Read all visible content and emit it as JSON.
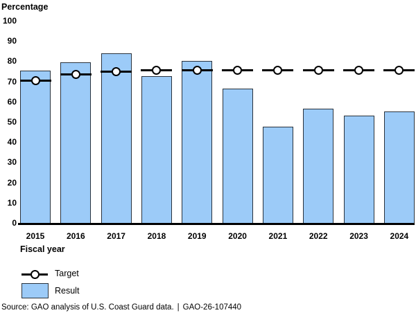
{
  "chart_data": {
    "type": "bar",
    "title": "",
    "ylabel": "Percentage",
    "xlabel": "Fiscal year",
    "categories": [
      "2015",
      "2016",
      "2017",
      "2018",
      "2019",
      "2020",
      "2021",
      "2022",
      "2023",
      "2024"
    ],
    "series": [
      {
        "name": "Target",
        "type": "line-marker",
        "values": [
          70.5,
          73.5,
          75,
          75.5,
          75.5,
          75.5,
          75.5,
          75.5,
          75.5,
          75.5
        ]
      },
      {
        "name": "Result",
        "type": "bar",
        "values": [
          75.5,
          79.5,
          84,
          72.5,
          80,
          66.5,
          47.5,
          56.5,
          53,
          55
        ]
      }
    ],
    "ylim": [
      0,
      100
    ],
    "ytick_interval": 10,
    "grid": false,
    "legend_position": "bottom-left",
    "colors": {
      "bar_fill": "#9CCBF8",
      "bar_border": "#29323C",
      "target_line": "#000000",
      "marker_fill": "#FFFFFF",
      "marker_border": "#000000",
      "axis_line": "#000000"
    }
  },
  "footer": {
    "source": "Source: GAO analysis of U.S. Coast Guard data.",
    "separator": "|",
    "report_number": "GAO-26-107440"
  }
}
